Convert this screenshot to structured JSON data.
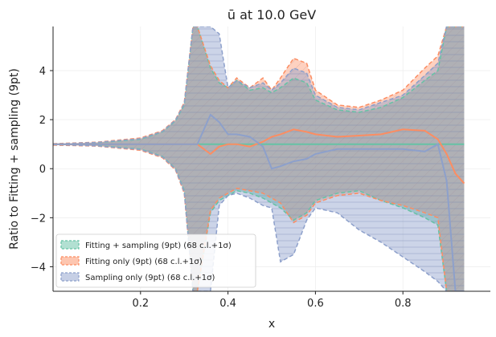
{
  "chart_data": {
    "type": "area",
    "title": "ū at 10.0 GeV",
    "xlabel": "x",
    "ylabel": "Ratio to Fitting + sampling (9pt)",
    "xlim": [
      0.0,
      1.0
    ],
    "ylim": [
      -5.0,
      5.8
    ],
    "xticks": [
      0.2,
      0.4,
      0.6,
      0.8
    ],
    "yticks": [
      -4,
      -2,
      0,
      2,
      4
    ],
    "grid": true,
    "legend_position": "lower-left",
    "series": [
      {
        "name": "Fitting + sampling (9pt) (68 c.l.+1σ)",
        "color": "#66c2a5",
        "x": [
          0.0,
          0.1,
          0.2,
          0.25,
          0.28,
          0.3,
          0.32,
          0.33,
          0.36,
          0.38,
          0.4,
          0.42,
          0.45,
          0.48,
          0.5,
          0.52,
          0.55,
          0.58,
          0.6,
          0.65,
          0.7,
          0.75,
          0.8,
          0.85,
          0.88,
          0.9,
          0.92,
          0.94
        ],
        "upper": [
          1.0,
          1.06,
          1.2,
          1.5,
          1.95,
          2.6,
          5.8,
          5.8,
          4.1,
          3.5,
          3.3,
          3.6,
          3.2,
          3.3,
          3.1,
          3.3,
          3.7,
          3.5,
          2.8,
          2.4,
          2.3,
          2.5,
          2.9,
          3.6,
          4.0,
          5.8,
          5.8,
          5.8
        ],
        "lower": [
          0.97,
          0.94,
          0.8,
          0.5,
          0.0,
          -0.9,
          -5.0,
          -5.0,
          -1.8,
          -1.3,
          -1.1,
          -0.9,
          -1.0,
          -1.2,
          -1.4,
          -1.6,
          -2.1,
          -1.8,
          -1.3,
          -1.0,
          -0.9,
          -1.3,
          -1.6,
          -2.0,
          -2.3,
          -5.0,
          -5.0,
          -5.0
        ],
        "central": [
          1.0,
          1.0,
          1.0,
          1.0,
          1.0,
          1.0,
          1.0,
          1.0,
          1.0,
          1.0,
          1.0,
          1.0,
          1.0,
          1.0,
          1.0,
          1.0,
          1.0,
          1.0,
          1.0,
          1.0,
          1.0,
          1.0,
          1.0,
          1.0,
          1.0,
          1.0,
          1.0,
          1.0
        ]
      },
      {
        "name": "Fitting only (9pt) (68 c.l.+1σ)",
        "color": "#fc8d62",
        "x": [
          0.0,
          0.1,
          0.2,
          0.25,
          0.28,
          0.3,
          0.32,
          0.33,
          0.36,
          0.38,
          0.4,
          0.42,
          0.45,
          0.48,
          0.5,
          0.52,
          0.55,
          0.58,
          0.6,
          0.65,
          0.7,
          0.75,
          0.8,
          0.85,
          0.88,
          0.9,
          0.92,
          0.94
        ],
        "upper": [
          1.02,
          1.08,
          1.25,
          1.55,
          2.0,
          2.7,
          5.8,
          5.8,
          4.2,
          3.6,
          3.3,
          3.7,
          3.3,
          3.7,
          3.2,
          3.7,
          4.5,
          4.3,
          3.2,
          2.6,
          2.5,
          2.8,
          3.2,
          4.1,
          4.6,
          5.8,
          5.8,
          5.8
        ],
        "lower": [
          0.96,
          0.92,
          0.75,
          0.45,
          -0.05,
          -1.0,
          -5.0,
          -5.0,
          -1.7,
          -1.2,
          -1.0,
          -0.8,
          -0.9,
          -1.0,
          -1.2,
          -1.4,
          -2.2,
          -1.9,
          -1.4,
          -1.1,
          -1.0,
          -1.3,
          -1.5,
          -1.8,
          -2.0,
          -5.0,
          -5.0,
          -5.0
        ],
        "central": [
          1.0,
          1.0,
          1.0,
          1.0,
          1.0,
          1.0,
          1.0,
          1.0,
          0.6,
          0.9,
          1.0,
          1.0,
          0.9,
          1.1,
          1.3,
          1.4,
          1.6,
          1.5,
          1.4,
          1.3,
          1.35,
          1.4,
          1.6,
          1.55,
          1.2,
          0.6,
          -0.2,
          -0.6
        ]
      },
      {
        "name": "Sampling only (9pt) (68 c.l.+1σ)",
        "color": "#8da0cb",
        "x": [
          0.0,
          0.1,
          0.2,
          0.25,
          0.28,
          0.3,
          0.32,
          0.33,
          0.36,
          0.38,
          0.4,
          0.42,
          0.45,
          0.48,
          0.5,
          0.52,
          0.55,
          0.58,
          0.6,
          0.65,
          0.7,
          0.75,
          0.8,
          0.85,
          0.88,
          0.9,
          0.92,
          0.94
        ],
        "upper": [
          1.01,
          1.07,
          1.22,
          1.52,
          1.98,
          2.65,
          5.8,
          5.8,
          5.8,
          5.5,
          3.3,
          3.6,
          3.3,
          3.5,
          3.2,
          3.5,
          4.1,
          3.9,
          3.0,
          2.5,
          2.4,
          2.7,
          3.0,
          3.8,
          4.3,
          5.8,
          5.8,
          5.8
        ],
        "lower": [
          0.98,
          0.93,
          0.78,
          0.48,
          -0.02,
          -0.95,
          -5.0,
          -5.0,
          -5.0,
          -1.5,
          -1.1,
          -1.0,
          -1.2,
          -1.5,
          -1.6,
          -3.8,
          -3.5,
          -2.1,
          -1.6,
          -1.8,
          -2.5,
          -3.0,
          -3.6,
          -4.2,
          -4.6,
          -5.0,
          -5.0,
          -5.0
        ],
        "central": [
          1.0,
          1.0,
          1.0,
          1.0,
          1.0,
          1.0,
          1.0,
          1.0,
          2.2,
          1.9,
          1.4,
          1.4,
          1.3,
          0.9,
          0.0,
          0.1,
          0.3,
          0.4,
          0.6,
          0.8,
          0.8,
          0.8,
          0.8,
          0.7,
          1.0,
          -0.5,
          -5.0,
          -5.0
        ]
      }
    ]
  }
}
